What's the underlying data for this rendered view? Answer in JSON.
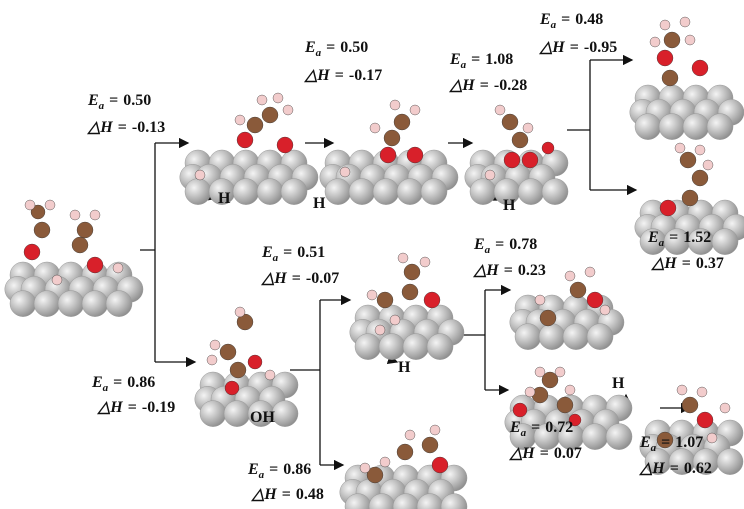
{
  "symbols": {
    "ea": "E",
    "ea_sub": "a",
    "dh": "△H",
    "eq": "="
  },
  "steps": [
    {
      "ea": "0.50",
      "dh": "-0.13"
    },
    {
      "ea": "0.50",
      "dh": "-0.17"
    },
    {
      "ea": "1.08",
      "dh": "-0.28"
    },
    {
      "ea": "0.48",
      "dh": "-0.95"
    },
    {
      "ea": "1.52",
      "dh": "0.37"
    },
    {
      "ea": "0.51",
      "dh": "-0.07"
    },
    {
      "ea": "0.78",
      "dh": "0.23"
    },
    {
      "ea": "0.86",
      "dh": "-0.19"
    },
    {
      "ea": "0.86",
      "dh": "0.48"
    },
    {
      "ea": "0.72",
      "dh": "0.07"
    },
    {
      "ea": "1.07",
      "dh": "0.62"
    }
  ],
  "fragments": [
    "H",
    "H",
    "H",
    "H",
    "OH",
    "H"
  ]
}
